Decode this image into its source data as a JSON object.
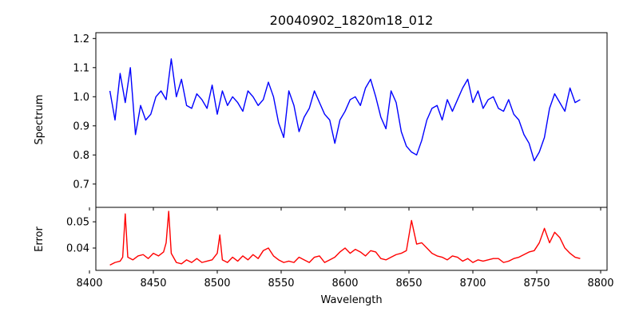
{
  "chart_data": [
    {
      "type": "line",
      "panel": "top",
      "title": "20040902_1820m18_012",
      "xlabel": "",
      "ylabel": "Spectrum",
      "xlim": [
        8405,
        8805
      ],
      "ylim": [
        0.62,
        1.22
      ],
      "xticks": [
        8400,
        8450,
        8500,
        8550,
        8600,
        8650,
        8700,
        8750,
        8800
      ],
      "yticks": [
        0.7,
        0.8,
        0.9,
        1.0,
        1.1,
        1.2
      ],
      "ytick_labels": [
        "0.7",
        "0.8",
        "0.9",
        "1.0",
        "1.1",
        "1.2"
      ],
      "grid": false,
      "color": "#0000ff",
      "series": [
        {
          "x": [
            8416,
            8420,
            8424,
            8428,
            8432,
            8436,
            8440,
            8444,
            8448,
            8452,
            8456,
            8460,
            8464,
            8468,
            8472,
            8476,
            8480,
            8484,
            8488,
            8492,
            8496,
            8500,
            8504,
            8508,
            8512,
            8516,
            8520,
            8524,
            8528,
            8532,
            8536,
            8540,
            8544,
            8548,
            8552,
            8556,
            8560,
            8564,
            8568,
            8572,
            8576,
            8580,
            8584,
            8588,
            8592,
            8596,
            8600,
            8604,
            8608,
            8612,
            8616,
            8620,
            8624,
            8628,
            8632,
            8636,
            8640,
            8644,
            8648,
            8652,
            8656,
            8660,
            8664,
            8668,
            8672,
            8676,
            8680,
            8684,
            8688,
            8692,
            8696,
            8700,
            8704,
            8708,
            8712,
            8716,
            8720,
            8724,
            8728,
            8732,
            8736,
            8740,
            8744,
            8748,
            8752,
            8756,
            8760,
            8764,
            8768,
            8772,
            8776,
            8780,
            8784
          ],
          "y": [
            1.02,
            0.92,
            1.08,
            0.98,
            1.1,
            0.87,
            0.97,
            0.92,
            0.94,
            1.0,
            1.02,
            0.99,
            1.13,
            1.0,
            1.06,
            0.97,
            0.96,
            1.01,
            0.99,
            0.96,
            1.04,
            0.94,
            1.02,
            0.97,
            1.0,
            0.98,
            0.95,
            1.02,
            1.0,
            0.97,
            0.99,
            1.05,
            1.0,
            0.91,
            0.86,
            1.02,
            0.97,
            0.88,
            0.93,
            0.96,
            1.02,
            0.98,
            0.94,
            0.92,
            0.84,
            0.92,
            0.95,
            0.99,
            1.0,
            0.97,
            1.03,
            1.06,
            1.0,
            0.93,
            0.89,
            1.02,
            0.98,
            0.88,
            0.83,
            0.81,
            0.8,
            0.85,
            0.92,
            0.96,
            0.97,
            0.92,
            0.99,
            0.95,
            0.99,
            1.03,
            1.06,
            0.98,
            1.02,
            0.96,
            0.99,
            1.0,
            0.96,
            0.95,
            0.99,
            0.94,
            0.92,
            0.87,
            0.84,
            0.78,
            0.81,
            0.86,
            0.96,
            1.01,
            0.98,
            0.95,
            1.03,
            0.98,
            0.99
          ]
        }
      ]
    },
    {
      "type": "line",
      "panel": "bottom",
      "title": "",
      "xlabel": "Wavelength",
      "ylabel": "Error",
      "xlim": [
        8405,
        8805
      ],
      "ylim": [
        0.0315,
        0.0555
      ],
      "xticks": [
        8400,
        8450,
        8500,
        8550,
        8600,
        8650,
        8700,
        8750,
        8800
      ],
      "xtick_labels": [
        "8400",
        "8450",
        "8500",
        "8550",
        "8600",
        "8650",
        "8700",
        "8750",
        "8800"
      ],
      "yticks": [
        0.04,
        0.05
      ],
      "ytick_labels": [
        "0.04",
        "0.05"
      ],
      "grid": false,
      "color": "#ff0000",
      "series": [
        {
          "x": [
            8416,
            8420,
            8424,
            8426,
            8428,
            8430,
            8434,
            8438,
            8442,
            8446,
            8450,
            8454,
            8458,
            8460,
            8462,
            8464,
            8468,
            8472,
            8476,
            8480,
            8484,
            8488,
            8492,
            8496,
            8500,
            8502,
            8504,
            8508,
            8512,
            8516,
            8520,
            8524,
            8528,
            8532,
            8536,
            8540,
            8544,
            8548,
            8552,
            8556,
            8560,
            8564,
            8568,
            8572,
            8576,
            8580,
            8584,
            8588,
            8592,
            8596,
            8600,
            8604,
            8608,
            8612,
            8616,
            8620,
            8624,
            8628,
            8632,
            8636,
            8640,
            8644,
            8648,
            8652,
            8656,
            8660,
            8664,
            8668,
            8672,
            8676,
            8680,
            8684,
            8688,
            8692,
            8696,
            8700,
            8704,
            8708,
            8712,
            8716,
            8720,
            8724,
            8728,
            8732,
            8736,
            8740,
            8744,
            8748,
            8752,
            8756,
            8760,
            8764,
            8768,
            8772,
            8776,
            8780,
            8784
          ],
          "y": [
            0.0335,
            0.0345,
            0.035,
            0.0365,
            0.053,
            0.0365,
            0.0355,
            0.037,
            0.0375,
            0.036,
            0.038,
            0.037,
            0.0385,
            0.042,
            0.054,
            0.038,
            0.0345,
            0.034,
            0.0355,
            0.0345,
            0.036,
            0.0345,
            0.035,
            0.0355,
            0.038,
            0.045,
            0.0355,
            0.0345,
            0.0365,
            0.035,
            0.037,
            0.0355,
            0.0375,
            0.036,
            0.039,
            0.04,
            0.037,
            0.0355,
            0.0345,
            0.035,
            0.0345,
            0.0365,
            0.0355,
            0.0345,
            0.0365,
            0.037,
            0.0345,
            0.0355,
            0.0365,
            0.0385,
            0.04,
            0.038,
            0.0395,
            0.0385,
            0.037,
            0.039,
            0.0385,
            0.036,
            0.0355,
            0.0365,
            0.0375,
            0.038,
            0.039,
            0.0505,
            0.0415,
            0.042,
            0.04,
            0.038,
            0.037,
            0.0365,
            0.0355,
            0.037,
            0.0365,
            0.035,
            0.036,
            0.0345,
            0.0355,
            0.035,
            0.0355,
            0.036,
            0.036,
            0.0345,
            0.035,
            0.036,
            0.0365,
            0.0375,
            0.0385,
            0.039,
            0.042,
            0.0475,
            0.042,
            0.046,
            0.044,
            0.04,
            0.038,
            0.0365,
            0.036
          ]
        }
      ]
    }
  ]
}
